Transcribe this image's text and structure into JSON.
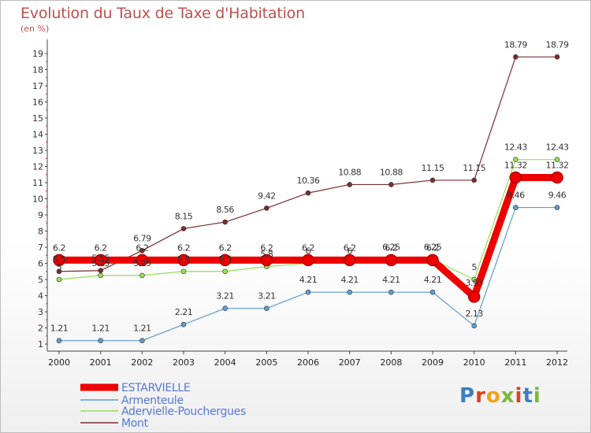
{
  "chart_data": {
    "type": "line",
    "title": "Evolution du Taux de Taxe d'Habitation",
    "subtitle": "(en %)",
    "x": [
      "2000",
      "2001",
      "2002",
      "2003",
      "2004",
      "2005",
      "2006",
      "2007",
      "2008",
      "2009",
      "2010",
      "2011",
      "2012"
    ],
    "ylim": [
      1,
      19
    ],
    "yticks": [
      1,
      2,
      3,
      4,
      5,
      6,
      7,
      8,
      9,
      10,
      11,
      12,
      13,
      14,
      15,
      16,
      17,
      18,
      19
    ],
    "grid": false,
    "legend_position": "bottom-left",
    "series": [
      {
        "name": "ESTARVIELLE",
        "color": "#ee0000",
        "width": 9,
        "values": [
          6.2,
          6.2,
          6.2,
          6.2,
          6.2,
          6.2,
          6.2,
          6.2,
          6.2,
          6.2,
          3.93,
          11.32,
          11.32
        ],
        "labels": [
          "6.2",
          "6.2",
          "6.2",
          "6.2",
          "6.2",
          "6.2",
          "6.2",
          "6.2",
          "6.2",
          "6.2",
          "3.93",
          "11.32",
          "11.32"
        ]
      },
      {
        "name": "Armenteule",
        "color": "#5e9ccf",
        "width": 1.2,
        "values": [
          1.21,
          1.21,
          1.21,
          2.21,
          3.21,
          3.21,
          4.21,
          4.21,
          4.21,
          4.21,
          2.13,
          9.46,
          9.46
        ],
        "labels": [
          "1.21",
          "1.21",
          "1.21",
          "2.21",
          "3.21",
          "3.21",
          "4.21",
          "4.21",
          "4.21",
          "4.21",
          "2.13",
          "9.46",
          "9.46"
        ]
      },
      {
        "name": "Adervielle-Pouchergues",
        "color": "#99dd55",
        "width": 1.2,
        "values": [
          5,
          5.25,
          5.25,
          5.5,
          5.5,
          5.8,
          6,
          6,
          6.25,
          6.25,
          5,
          12.43,
          12.43
        ],
        "labels": [
          "5",
          "5.25",
          "5.25",
          "5.5",
          "5.5",
          "5.8",
          "6",
          "6",
          "6.25",
          "6.25",
          "5",
          "12.43",
          "12.43"
        ]
      },
      {
        "name": "Mont",
        "color": "#7a2e2e",
        "width": 1.2,
        "values": [
          5.5,
          5.55,
          6.79,
          8.15,
          8.56,
          9.42,
          10.36,
          10.88,
          10.88,
          11.15,
          11.15,
          18.79,
          18.79
        ],
        "labels": [
          "5.5",
          "5.55",
          "6.79",
          "8.15",
          "8.56",
          "9.42",
          "10.36",
          "10.88",
          "10.88",
          "11.15",
          "11.15",
          "18.79",
          "18.79"
        ]
      }
    ]
  },
  "logo": {
    "text": "Proxiti",
    "colors": [
      "#3a7fc1",
      "#e2401c",
      "#f0a31c",
      "#78b83a",
      "#e2401c",
      "#3a7fc1",
      "#78b83a"
    ]
  }
}
